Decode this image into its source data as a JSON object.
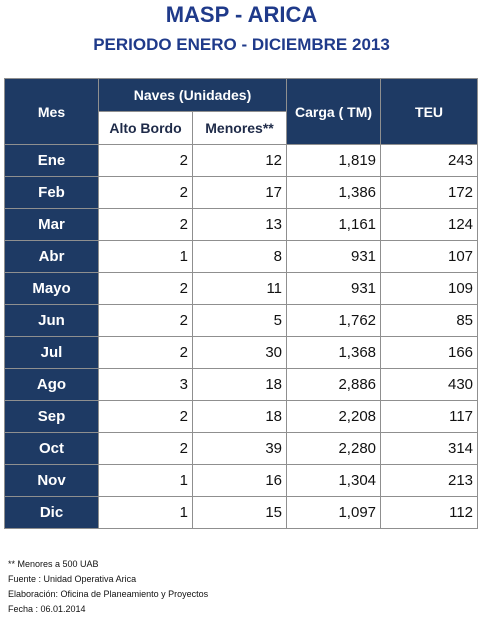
{
  "title": "MASP - ARICA",
  "subtitle": "PERIODO ENERO - DICIEMBRE 2013",
  "headers": {
    "mes": "Mes",
    "naves": "Naves (Unidades)",
    "alto_bordo": "Alto Bordo",
    "menores": "Menores**",
    "carga": "Carga ( TM)",
    "teu": "TEU"
  },
  "rows": [
    {
      "mes": "Ene",
      "alto_bordo": "2",
      "menores": "12",
      "carga": "1,819",
      "teu": "243"
    },
    {
      "mes": "Feb",
      "alto_bordo": "2",
      "menores": "17",
      "carga": "1,386",
      "teu": "172"
    },
    {
      "mes": "Mar",
      "alto_bordo": "2",
      "menores": "13",
      "carga": "1,161",
      "teu": "124"
    },
    {
      "mes": "Abr",
      "alto_bordo": "1",
      "menores": "8",
      "carga": "931",
      "teu": "107"
    },
    {
      "mes": "Mayo",
      "alto_bordo": "2",
      "menores": "11",
      "carga": "931",
      "teu": "109"
    },
    {
      "mes": "Jun",
      "alto_bordo": "2",
      "menores": "5",
      "carga": "1,762",
      "teu": "85"
    },
    {
      "mes": "Jul",
      "alto_bordo": "2",
      "menores": "30",
      "carga": "1,368",
      "teu": "166"
    },
    {
      "mes": "Ago",
      "alto_bordo": "3",
      "menores": "18",
      "carga": "2,886",
      "teu": "430"
    },
    {
      "mes": "Sep",
      "alto_bordo": "2",
      "menores": "18",
      "carga": "2,208",
      "teu": "117"
    },
    {
      "mes": "Oct",
      "alto_bordo": "2",
      "menores": "39",
      "carga": "2,280",
      "teu": "314"
    },
    {
      "mes": "Nov",
      "alto_bordo": "1",
      "menores": "16",
      "carga": "1,304",
      "teu": "213"
    },
    {
      "mes": "Dic",
      "alto_bordo": "1",
      "menores": "15",
      "carga": "1,097",
      "teu": "112"
    }
  ],
  "notes": [
    "** Menores a 500 UAB",
    "Fuente : Unidad Operativa Arica",
    "Elaboración: Oficina de Planeamiento y Proyectos",
    "Fecha : 06.01.2014"
  ],
  "colors": {
    "title": "#1f3a8a",
    "header_fill": "#1e3a64",
    "header_text": "#ffffff",
    "border": "#8f8f8f"
  }
}
